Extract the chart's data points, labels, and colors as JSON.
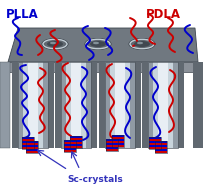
{
  "bg_color": "#ffffff",
  "plla_label": "PLLA",
  "pdla_label": "PDLA",
  "sc_label": "Sc-crystals",
  "plla_color": "#0000cc",
  "pdla_color": "#cc0000",
  "sc_color": "#3333bb",
  "figsize": [
    2.05,
    1.89
  ],
  "dpi": 100,
  "mem_top_dark": "#707880",
  "mem_top_light": "#909aa4",
  "mem_wall_dark": "#606870",
  "mem_wall_mid": "#8a9098",
  "cyl_light": "#e8eef4",
  "cyl_mid": "#c8d4dc",
  "cyl_dark": "#909aa4",
  "hole_outer": "#606870",
  "hole_inner": "#404850",
  "hole_highlight": "#c0ccd4"
}
